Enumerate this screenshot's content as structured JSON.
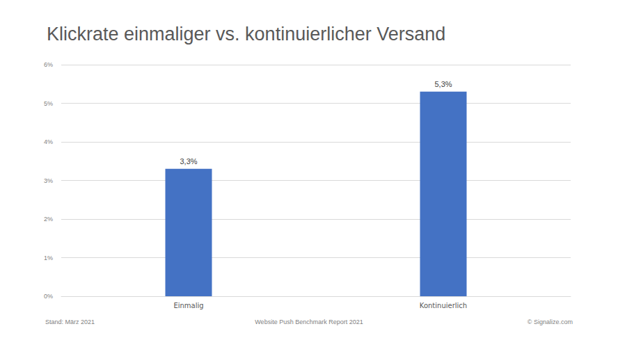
{
  "chart_data": {
    "type": "bar",
    "title": "Klickrate einmaliger vs. kontinuierlicher Versand",
    "categories": [
      "Einmalig",
      "Kontinuierlich"
    ],
    "values": [
      3.3,
      5.3
    ],
    "value_labels": [
      "3,3%",
      "5,3%"
    ],
    "color": "#4472c4",
    "ylim": [
      0,
      6
    ],
    "yticks": [
      {
        "value": 0,
        "label": "0%"
      },
      {
        "value": 1,
        "label": "1%"
      },
      {
        "value": 2,
        "label": "2%"
      },
      {
        "value": 3,
        "label": "3%"
      },
      {
        "value": 4,
        "label": "4%"
      },
      {
        "value": 5,
        "label": "5%"
      },
      {
        "value": 6,
        "label": "6%"
      }
    ],
    "grid": true,
    "data_labels": true,
    "annotations": [
      "Stand: März 2021",
      "Website Push Benchmark Report 2021",
      "© Signalize.com"
    ]
  }
}
